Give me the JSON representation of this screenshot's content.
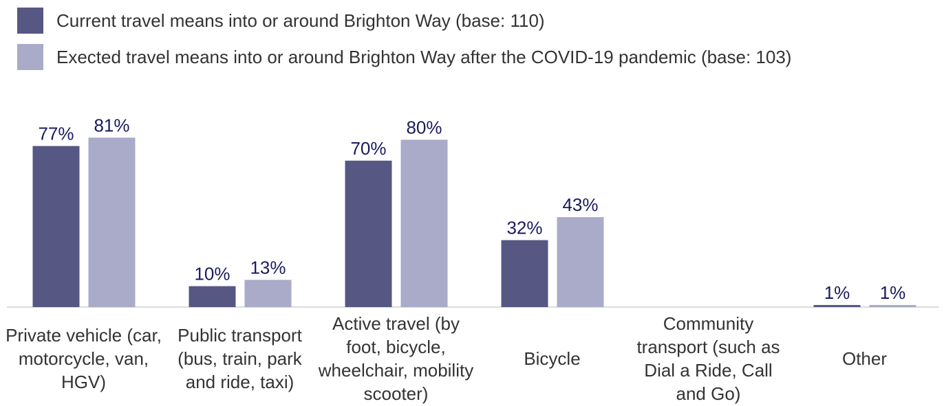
{
  "chart_data": {
    "type": "bar",
    "categories": [
      "Private vehicle (car, motorcycle, van, HGV)",
      "Public transport (bus, train, park and ride, taxi)",
      "Active travel (by foot, bicycle, wheelchair, mobility scooter)",
      "Bicycle",
      "Community transport (such as Dial a Ride, Call and Go)",
      "Other"
    ],
    "series": [
      {
        "name": "Current travel means into or around Brighton Way (base: 110)",
        "color": "#575784",
        "values": [
          77,
          10,
          70,
          32,
          null,
          1
        ],
        "value_labels": [
          "77%",
          "10%",
          "70%",
          "32%",
          null,
          "1%"
        ]
      },
      {
        "name": "Exected travel means into or around Brighton Way after the COVID-19 pandemic (base: 103)",
        "color": "#a9abc8",
        "values": [
          81,
          13,
          80,
          43,
          null,
          1
        ],
        "value_labels": [
          "81%",
          "13%",
          "80%",
          "43%",
          null,
          "1%"
        ]
      }
    ]
  }
}
